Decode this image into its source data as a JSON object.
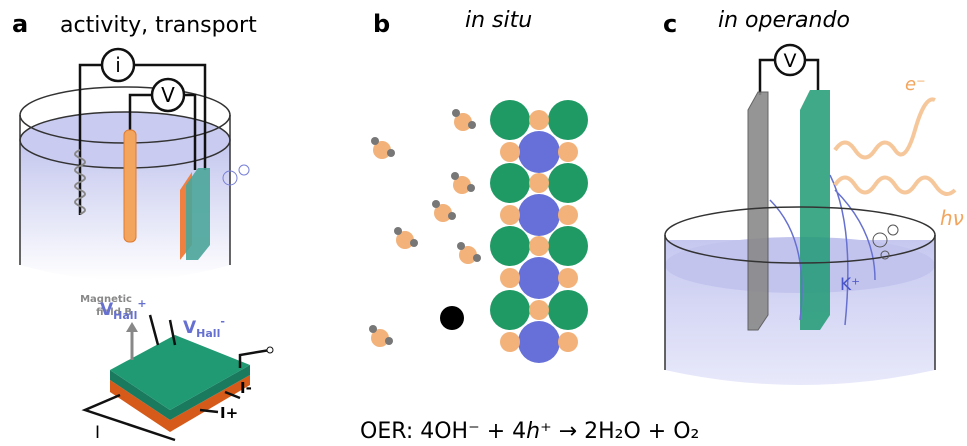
{
  "panel_a": {
    "letter": "a",
    "title": "activity, transport",
    "current_meter": "i",
    "voltmeter": "V",
    "hall_plus": {
      "main": "V",
      "sub": "Hall",
      "sup": "+"
    },
    "hall_minus": {
      "main": "V",
      "sub": "Hall",
      "sup": "-"
    },
    "field_label": [
      "Magnetic",
      "field B"
    ],
    "i_minus": "I-",
    "i_plus": "I+",
    "i_label": "I"
  },
  "panel_b": {
    "letter": "b",
    "title": "in situ"
  },
  "panel_c": {
    "letter": "c",
    "title": "in operando",
    "voltmeter": "V",
    "electron": "e⁻",
    "photon": "hν",
    "ion": "K⁺"
  },
  "equation": [
    "OER: 4OH⁻ + 4",
    "h",
    "⁺ → 2H₂O + O₂"
  ]
}
